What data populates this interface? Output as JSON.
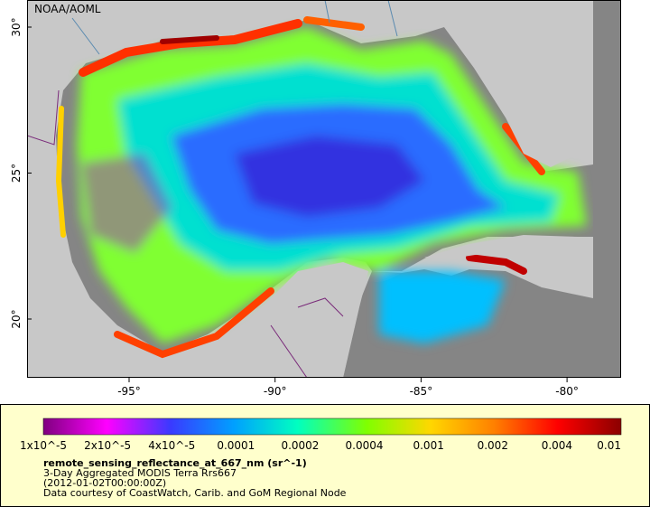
{
  "header": {
    "title": "NOAA/AOML"
  },
  "map": {
    "lat_labels": [
      "30°",
      "25°",
      "20°"
    ],
    "lon_labels": [
      "-95°",
      "-90°",
      "-85°",
      "-80°"
    ]
  },
  "colorbar": {
    "labels": [
      "1x10^-5",
      "2x10^-5",
      "4x10^-5",
      "0.0001",
      "0.0002",
      "0.0004",
      "0.001",
      "0.002",
      "0.004",
      "0.01"
    ]
  },
  "legend": {
    "variable": "remote_sensing_reflectance_at_667_nm (sr^-1)",
    "source": "3-Day Aggregated MODIS Terra Rrs667",
    "time": "(2012-01-02T00:00:00Z)",
    "credit": "Data courtesy of CoastWatch, Carib. and GoM Regional Node"
  }
}
